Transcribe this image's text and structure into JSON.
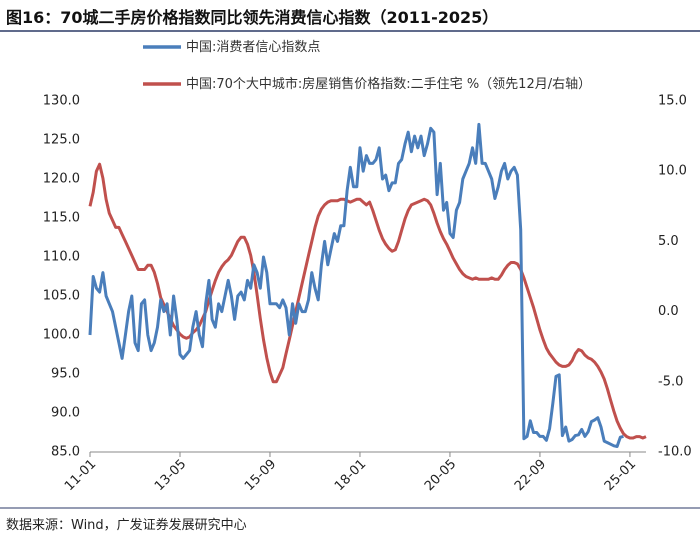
{
  "chart_data": {
    "type": "line",
    "title": "图16：70城二手房价格指数同比领先消费信心指数（2011-2025）",
    "source": "数据来源：Wind，广发证券发展研究中心",
    "legend": "top",
    "grid": false,
    "categories": [
      "11-01",
      "11-02",
      "11-03",
      "11-04",
      "11-05",
      "11-06",
      "11-07",
      "11-08",
      "11-09",
      "11-10",
      "11-11",
      "11-12",
      "12-01",
      "12-02",
      "12-03",
      "12-04",
      "12-05",
      "12-06",
      "12-07",
      "12-08",
      "12-09",
      "12-10",
      "12-11",
      "12-12",
      "13-01",
      "13-02",
      "13-03",
      "13-04",
      "13-05",
      "13-06",
      "13-07",
      "13-08",
      "13-09",
      "13-10",
      "13-11",
      "13-12",
      "14-01",
      "14-02",
      "14-03",
      "14-04",
      "14-05",
      "14-06",
      "14-07",
      "14-08",
      "14-09",
      "14-10",
      "14-11",
      "14-12",
      "15-01",
      "15-02",
      "15-03",
      "15-04",
      "15-05",
      "15-06",
      "15-07",
      "15-08",
      "15-09",
      "15-10",
      "15-11",
      "15-12",
      "16-01",
      "16-02",
      "16-03",
      "16-04",
      "16-05",
      "16-06",
      "16-07",
      "16-08",
      "16-09",
      "16-10",
      "16-11",
      "16-12",
      "17-01",
      "17-02",
      "17-03",
      "17-04",
      "17-05",
      "17-06",
      "17-07",
      "17-08",
      "17-09",
      "17-10",
      "17-11",
      "17-12",
      "18-01",
      "18-02",
      "18-03",
      "18-04",
      "18-05",
      "18-06",
      "18-07",
      "18-08",
      "18-09",
      "18-10",
      "18-11",
      "18-12",
      "19-01",
      "19-02",
      "19-03",
      "19-04",
      "19-05",
      "19-06",
      "19-07",
      "19-08",
      "19-09",
      "19-10",
      "19-11",
      "19-12",
      "20-01",
      "20-02",
      "20-03",
      "20-04",
      "20-05",
      "20-06",
      "20-07",
      "20-08",
      "20-09",
      "20-10",
      "20-11",
      "20-12",
      "21-01",
      "21-02",
      "21-03",
      "21-04",
      "21-05",
      "21-06",
      "21-07",
      "21-08",
      "21-09",
      "21-10",
      "21-11",
      "21-12",
      "22-01",
      "22-02",
      "22-03",
      "22-04",
      "22-05",
      "22-06",
      "22-07",
      "22-08",
      "22-09",
      "22-10",
      "22-11",
      "22-12",
      "23-01",
      "23-02",
      "23-03",
      "23-04",
      "23-05",
      "23-06",
      "23-07",
      "23-08",
      "23-09",
      "23-10",
      "23-11",
      "23-12",
      "24-01",
      "24-02",
      "24-03",
      "24-04",
      "24-05",
      "24-06",
      "24-07",
      "24-08",
      "24-09",
      "24-10",
      "24-11",
      "24-12",
      "25-01",
      "25-02",
      "25-03",
      "25-04",
      "25-05",
      "25-06"
    ],
    "xticks": [
      "11-01",
      "13-05",
      "15-09",
      "18-01",
      "20-05",
      "22-09",
      "25-01"
    ],
    "ylim": [
      85,
      130
    ],
    "yticks": [
      {
        "value": 85,
        "label": "85.0"
      },
      {
        "value": 90,
        "label": "90.0"
      },
      {
        "value": 95,
        "label": "95.0"
      },
      {
        "value": 100,
        "label": "100.0"
      },
      {
        "value": 105,
        "label": "105.0"
      },
      {
        "value": 110,
        "label": "110.0"
      },
      {
        "value": 115,
        "label": "115.0"
      },
      {
        "value": 120,
        "label": "120.0"
      },
      {
        "value": 125,
        "label": "125.0"
      },
      {
        "value": 130,
        "label": "130.0"
      }
    ],
    "y2lim": [
      -10,
      15
    ],
    "y2ticks": [
      {
        "value": -10,
        "label": "-10.0"
      },
      {
        "value": -5,
        "label": "-5.0"
      },
      {
        "value": 0,
        "label": "0.0"
      },
      {
        "value": 5,
        "label": "5.0"
      },
      {
        "value": 10,
        "label": "10.0"
      },
      {
        "value": 15,
        "label": "15.0"
      }
    ],
    "series": [
      {
        "name": "中国:消费者信心指数点",
        "color": "#4a7ebb",
        "values": [
          100,
          107.5,
          106,
          105.5,
          108,
          105,
          104,
          103,
          101,
          99,
          97,
          100,
          103,
          105,
          99,
          98,
          104,
          104.5,
          100,
          98,
          99,
          101,
          104.5,
          103,
          104,
          100,
          105,
          102,
          97.5,
          97,
          97.5,
          98,
          101,
          103,
          100,
          98.5,
          104,
          107,
          102,
          101,
          104,
          103,
          105,
          107,
          105,
          102,
          105,
          105.5,
          104.5,
          107,
          106,
          109,
          108,
          106,
          110,
          108,
          104,
          104,
          104,
          103.5,
          104.5,
          103.5,
          100,
          104,
          101.5,
          104,
          103,
          103,
          104.5,
          108,
          106,
          104.5,
          109,
          112,
          109,
          111,
          113,
          112,
          114,
          114,
          118.5,
          121.5,
          119,
          119,
          124,
          121,
          123,
          122,
          122,
          122.5,
          124,
          120,
          120.5,
          118.5,
          119.5,
          119.5,
          122,
          122.5,
          124.5,
          126,
          123.5,
          125.5,
          124,
          125.5,
          123,
          124.5,
          126.5,
          126,
          118,
          122,
          116,
          117,
          113,
          112.5,
          116,
          117,
          120,
          121,
          122,
          124,
          122,
          127,
          122,
          122,
          121,
          120,
          117.5,
          119,
          121,
          122,
          120,
          121,
          121.5,
          120.5,
          113.5,
          86.7,
          87,
          89,
          87.5,
          87.5,
          87,
          87,
          86.5,
          88,
          91.2,
          94.7,
          94.9,
          87.1,
          88.2,
          86.4,
          86.6,
          87.1,
          87.2,
          87.9,
          87,
          87.6,
          88.9,
          89.1,
          89.4,
          88.2,
          86.4,
          86.2,
          86,
          85.8,
          85.7,
          86.9,
          87,
          null,
          null,
          null,
          null,
          null,
          null,
          null
        ]
      },
      {
        "name": "中国:70个大中城市:房屋销售价格指数:二手住宅 %（领先12月/右轴）",
        "color": "#c0504d",
        "axis": "y2",
        "values": [
          7.5,
          8.5,
          10,
          10.5,
          9.5,
          8,
          7,
          6.5,
          6,
          6,
          5.5,
          5,
          4.5,
          4,
          3.5,
          3,
          3,
          3,
          3.3,
          3.3,
          2.8,
          2,
          1,
          0.5,
          0,
          -0.5,
          -1,
          -1.3,
          -1.6,
          -1.8,
          -1.9,
          -1.8,
          -1.5,
          -1.3,
          -1,
          -0.5,
          0,
          0.8,
          1.5,
          2.2,
          2.8,
          3.2,
          3.5,
          3.7,
          4,
          4.5,
          5,
          5.3,
          5.3,
          4.8,
          4,
          2.8,
          1.2,
          -0.5,
          -2,
          -3.3,
          -4.3,
          -5,
          -5,
          -4.5,
          -4,
          -3,
          -2,
          -1,
          0,
          1,
          2,
          3,
          4,
          5,
          6,
          6.8,
          7.3,
          7.6,
          7.8,
          7.9,
          7.9,
          7.9,
          8,
          8,
          7.9,
          7.8,
          7.9,
          8,
          8,
          7.8,
          7.6,
          7.8,
          7.2,
          6.5,
          5.8,
          5.2,
          4.8,
          4.5,
          4.3,
          4.4,
          5,
          5.8,
          6.6,
          7.2,
          7.6,
          7.7,
          7.8,
          7.9,
          8,
          7.9,
          7.6,
          7,
          6.3,
          5.7,
          5.2,
          4.8,
          4.3,
          3.8,
          3.4,
          3,
          2.7,
          2.5,
          2.4,
          2.3,
          2.4,
          2.3,
          2.3,
          2.3,
          2.3,
          2.4,
          2.3,
          2.3,
          2.6,
          3,
          3.3,
          3.5,
          3.5,
          3.4,
          3,
          2.4,
          1.7,
          1,
          0.3,
          -0.5,
          -1.3,
          -2,
          -2.6,
          -3,
          -3.3,
          -3.6,
          -3.8,
          -3.9,
          -3.9,
          -3.8,
          -3.5,
          -3,
          -2.7,
          -2.8,
          -3.1,
          -3.3,
          -3.4,
          -3.6,
          -3.9,
          -4.3,
          -4.8,
          -5.5,
          -6.3,
          -7.1,
          -7.8,
          -8.3,
          -8.7,
          -8.9,
          -9,
          -9,
          -8.9,
          -8.9,
          -9,
          -8.9
        ]
      }
    ]
  }
}
